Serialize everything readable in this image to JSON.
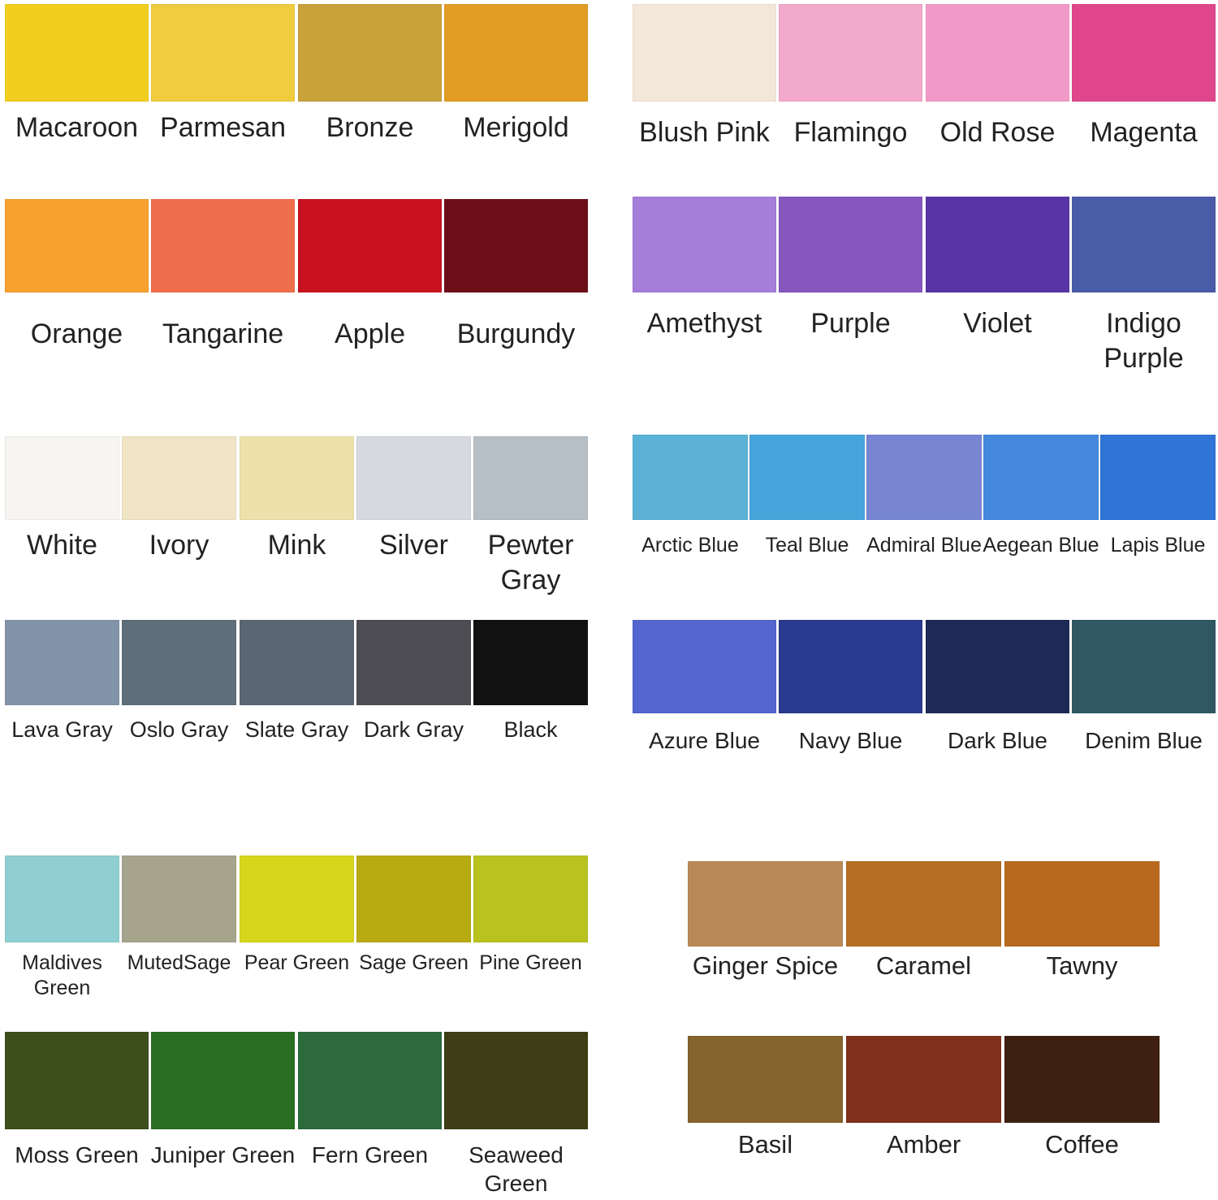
{
  "rows": [
    {
      "swatches": [
        {
          "label": "Macaroon",
          "color": "#f2cf1e"
        },
        {
          "label": "Parmesan",
          "color": "#f0cc3e"
        },
        {
          "label": "Bronze",
          "color": "#c9a23a"
        },
        {
          "label": "Merigold",
          "color": "#e19c24"
        }
      ]
    },
    {
      "swatches": [
        {
          "label": "Orange",
          "color": "#f7a12f"
        },
        {
          "label": "Tangarine",
          "color": "#ef6e4c"
        },
        {
          "label": "Apple",
          "color": "#c8121f"
        },
        {
          "label": "Burgundy",
          "color": "#6e0d18"
        }
      ]
    },
    {
      "swatches": [
        {
          "label": "White",
          "color": "#f6f5f1"
        },
        {
          "label": "Ivory",
          "color": "#efe5c4"
        },
        {
          "label": "Mink",
          "color": "#ede2ab"
        },
        {
          "label": "Silver",
          "color": "#d6dadf"
        },
        {
          "label": "Pewter Gray",
          "color": "#b6bfc6"
        }
      ]
    },
    {
      "swatches": [
        {
          "label": "Lava Gray",
          "color": "#8294aa"
        },
        {
          "label": "Oslo Gray",
          "color": "#5e6f7a"
        },
        {
          "label": "Slate Gray",
          "color": "#5b6673"
        },
        {
          "label": "Dark Gray",
          "color": "#4c4c52"
        },
        {
          "label": "Black",
          "color": "#111111"
        }
      ]
    },
    {
      "swatches": [
        {
          "label": "Maldives Green",
          "color": "#8fcfd1"
        },
        {
          "label": "MutedSage",
          "color": "#a7a48e"
        },
        {
          "label": "Pear Green",
          "color": "#d7d51c"
        },
        {
          "label": "Sage Green",
          "color": "#b8ab12"
        },
        {
          "label": "Pine Green",
          "color": "#b9c21f"
        }
      ]
    },
    {
      "swatches": [
        {
          "label": "Moss Green",
          "color": "#3d4f1c"
        },
        {
          "label": "Juniper Green",
          "color": "#2a6e22"
        },
        {
          "label": "Fern Green",
          "color": "#2c6a3c"
        },
        {
          "label": "Seaweed Green",
          "color": "#3e3e16"
        }
      ]
    },
    {
      "swatches": [
        {
          "label": "Blush Pink",
          "color": "#f2e7d9"
        },
        {
          "label": "Flamingo",
          "color": "#f3a9cb"
        },
        {
          "label": "Old Rose",
          "color": "#f29ac7"
        },
        {
          "label": "Magenta",
          "color": "#e0468b"
        }
      ]
    },
    {
      "swatches": [
        {
          "label": "Amethyst",
          "color": "#a47ed9"
        },
        {
          "label": "Purple",
          "color": "#8757c0"
        },
        {
          "label": "Violet",
          "color": "#5835a4"
        },
        {
          "label": "Indigo Purple",
          "color": "#4a5ba8"
        }
      ]
    },
    {
      "swatches": [
        {
          "label": "Arctic Blue",
          "color": "#5bb2d6"
        },
        {
          "label": "Teal Blue",
          "color": "#47a5dc"
        },
        {
          "label": "Admiral Blue",
          "color": "#7785d3"
        },
        {
          "label": "Aegean Blue",
          "color": "#4489de"
        },
        {
          "label": "Lapis Blue",
          "color": "#2f74d6"
        }
      ]
    },
    {
      "swatches": [
        {
          "label": "Azure Blue",
          "color": "#5466cf"
        },
        {
          "label": "Navy Blue",
          "color": "#2a3b8f"
        },
        {
          "label": "Dark Blue",
          "color": "#1e2a55"
        },
        {
          "label": "Denim Blue",
          "color": "#2f5863"
        }
      ]
    },
    {
      "swatches": [
        {
          "label": "Ginger Spice",
          "color": "#b98a57"
        },
        {
          "label": "Caramel",
          "color": "#b56e23"
        },
        {
          "label": "Tawny",
          "color": "#b8691f"
        }
      ]
    },
    {
      "swatches": [
        {
          "label": "Basil",
          "color": "#86642d"
        },
        {
          "label": "Amber",
          "color": "#80301c"
        },
        {
          "label": "Coffee",
          "color": "#3d2012"
        }
      ]
    }
  ]
}
